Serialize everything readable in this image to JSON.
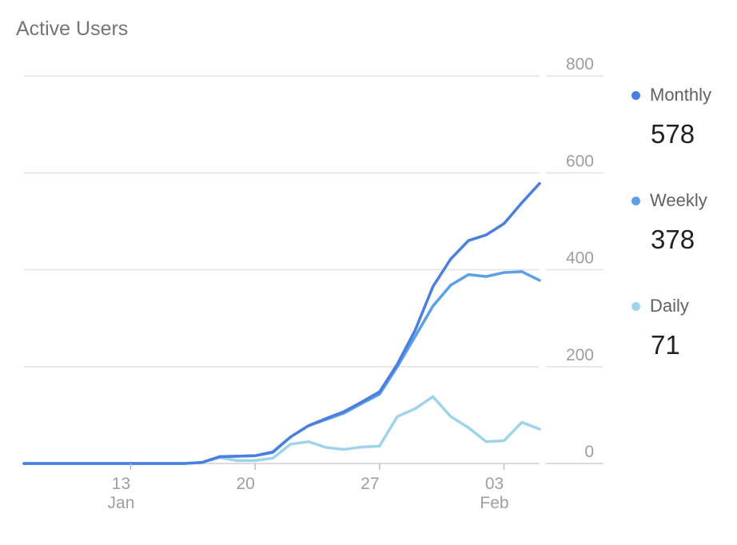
{
  "chart_data": {
    "type": "line",
    "title": "Active Users",
    "x_ticks": [
      {
        "day": 13,
        "label": "13",
        "sublabel": "Jan"
      },
      {
        "day": 20,
        "label": "20",
        "sublabel": ""
      },
      {
        "day": 27,
        "label": "27",
        "sublabel": ""
      },
      {
        "day": 34,
        "label": "03",
        "sublabel": "Feb"
      }
    ],
    "x": [
      7,
      8,
      9,
      10,
      11,
      12,
      13,
      14,
      15,
      16,
      17,
      18,
      19,
      20,
      21,
      22,
      23,
      24,
      25,
      26,
      27,
      28,
      29,
      30,
      31,
      32,
      33,
      34,
      35,
      36
    ],
    "ylim": [
      0,
      800
    ],
    "yticks": [
      0,
      200,
      400,
      600,
      800
    ],
    "grid": true,
    "legend_position": "right",
    "series": [
      {
        "name": "Monthly",
        "color": "#4a7fe0",
        "latest": "578",
        "values": [
          0,
          0,
          0,
          0,
          0,
          0,
          0,
          0,
          0,
          0,
          2,
          14,
          15,
          16,
          24,
          55,
          78,
          93,
          107,
          127,
          148,
          205,
          275,
          365,
          422,
          460,
          472,
          495,
          538,
          578
        ]
      },
      {
        "name": "Weekly",
        "color": "#5aa0e8",
        "latest": "378",
        "values": [
          0,
          0,
          0,
          0,
          0,
          0,
          0,
          0,
          0,
          0,
          2,
          14,
          15,
          16,
          23,
          55,
          78,
          91,
          104,
          124,
          143,
          200,
          262,
          325,
          368,
          390,
          386,
          394,
          396,
          378
        ]
      },
      {
        "name": "Daily",
        "color": "#9fd3ea",
        "latest": "71",
        "values": [
          0,
          0,
          0,
          0,
          0,
          0,
          0,
          0,
          0,
          0,
          2,
          12,
          6,
          6,
          11,
          40,
          45,
          33,
          29,
          34,
          36,
          97,
          113,
          138,
          97,
          74,
          45,
          47,
          85,
          71
        ]
      }
    ]
  }
}
